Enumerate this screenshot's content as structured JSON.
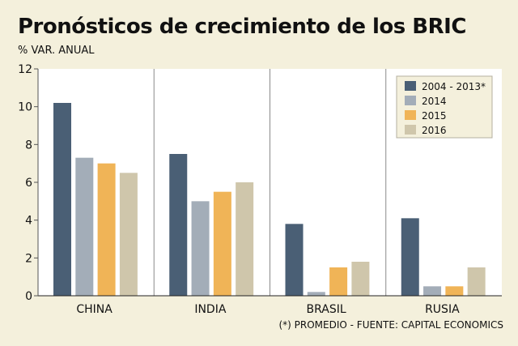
{
  "header": {
    "title": "Pronósticos de crecimiento de los BRIC",
    "subtitle": "% VAR. ANUAL"
  },
  "footnote": "(*) PROMEDIO - FUENTE: CAPITAL ECONOMICS",
  "chart_data": {
    "type": "bar",
    "title": "Pronósticos de crecimiento de los BRIC",
    "subtitle": "% VAR. ANUAL",
    "categories": [
      "CHINA",
      "INDIA",
      "BRASIL",
      "RUSIA"
    ],
    "series": [
      {
        "name": "2004 - 2013*",
        "values": [
          10.2,
          7.5,
          3.8,
          4.1
        ],
        "color": "#4a5f75"
      },
      {
        "name": "2014",
        "values": [
          7.3,
          5.0,
          0.2,
          0.5
        ],
        "color": "#a3adb8"
      },
      {
        "name": "2015",
        "values": [
          7.0,
          5.5,
          1.5,
          0.5
        ],
        "color": "#f0b457"
      },
      {
        "name": "2016",
        "values": [
          6.5,
          6.0,
          1.8,
          1.5
        ],
        "color": "#cfc6ab"
      }
    ],
    "ylim": [
      0,
      12
    ],
    "yticks": [
      0,
      2,
      4,
      6,
      8,
      10,
      12
    ],
    "grid": false,
    "legend_position": "top-right"
  }
}
